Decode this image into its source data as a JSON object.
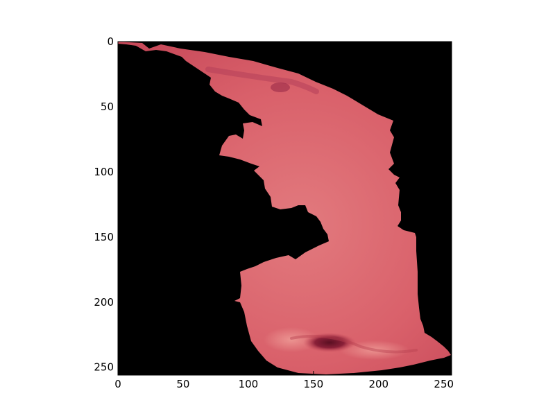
{
  "figure": {
    "content": "segmented-tissue-image",
    "background_color": "#000000",
    "tissue_colors": {
      "base": "#d9606a",
      "light": "#e58a8a",
      "dark": "#b83d4f",
      "lesion": "#6a1628"
    }
  },
  "axes": {
    "x_ticks": [
      "0",
      "50",
      "100",
      "150",
      "200",
      "250"
    ],
    "y_ticks": [
      "0",
      "50",
      "100",
      "150",
      "200",
      "250"
    ],
    "xlim": [
      0,
      256
    ],
    "ylim": [
      256,
      0
    ]
  }
}
